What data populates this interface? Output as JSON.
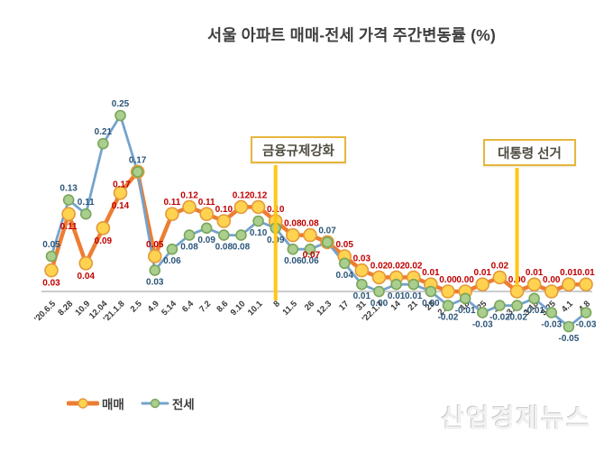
{
  "title": "서울 아파트 매매-전세 가격 주간변동률 (%)",
  "watermark": "산업경제뉴스",
  "annotations": [
    {
      "label": "금융규제강화",
      "category": "8",
      "category_index": 13
    },
    {
      "label": "대통령 선거",
      "category": "3.11",
      "category_index": 27
    }
  ],
  "legend": [
    {
      "name": "매매"
    },
    {
      "name": "전세"
    }
  ],
  "colors": {
    "title": "#3F3F3F",
    "axis_line": "#9B9B9B",
    "annotation_border": "#E5B73E",
    "annotation_line": "#FFC716",
    "watermark": "#F1F1F1"
  },
  "chart_data": {
    "type": "line",
    "title": "서울 아파트 매매-전세 가격 주간변동률 (%)",
    "xlabel": "",
    "ylabel": "",
    "ylim": [
      -0.1,
      0.3
    ],
    "grid": false,
    "y_axis_visible": false,
    "legend_position": "bottom-left",
    "categories": [
      "'20.6.5",
      "8.28",
      "10.9",
      "12.04",
      "'21.1.8",
      "2.5",
      "4.9",
      "5.14",
      "6.4",
      "7.2",
      "8.6",
      "9.10",
      "10.1",
      "8",
      "11.5",
      "26",
      "12.3",
      "17",
      "31",
      "'22.1.7",
      "14",
      "21",
      "28",
      "2.11",
      "18",
      "25",
      "3.4",
      "3.11",
      "3.18",
      "3.25",
      "4.1",
      "4.8"
    ],
    "series": [
      {
        "name": "매매",
        "line_color": "#ED7D31",
        "line_width": 4.5,
        "marker_fill": "#FFD350",
        "marker_stroke": "#E39A3B",
        "marker_r": 7,
        "label_color": "#C00000",
        "values": [
          0.03,
          0.11,
          0.04,
          0.09,
          0.14,
          0.17,
          0.05,
          0.11,
          0.12,
          0.11,
          0.1,
          0.12,
          0.12,
          0.1,
          0.08,
          0.08,
          0.07,
          0.05,
          0.03,
          0.02,
          0.02,
          0.02,
          0.01,
          0.0,
          0.0,
          0.01,
          0.02,
          0.0,
          0.01,
          0.0,
          0.01,
          0.01
        ]
      },
      {
        "name": "전세",
        "line_color": "#74A3CD",
        "line_width": 2.8,
        "marker_fill": "#A9CE8E",
        "marker_stroke": "#79A65A",
        "marker_r": 5.5,
        "label_color": "#2B5579",
        "values": [
          0.05,
          0.13,
          0.11,
          0.21,
          0.25,
          0.17,
          0.03,
          0.06,
          0.08,
          0.09,
          0.08,
          0.08,
          0.1,
          0.09,
          0.06,
          0.06,
          0.07,
          0.04,
          0.01,
          0.0,
          0.01,
          0.01,
          0.0,
          -0.02,
          -0.01,
          -0.03,
          -0.02,
          -0.02,
          -0.01,
          -0.03,
          -0.05,
          -0.03
        ]
      }
    ]
  }
}
